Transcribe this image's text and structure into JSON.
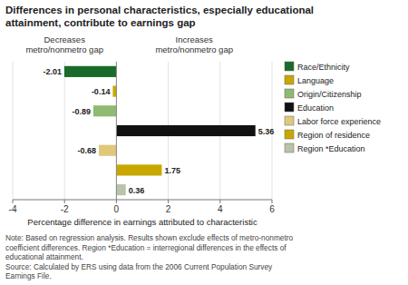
{
  "chart_data": {
    "type": "bar",
    "orientation": "horizontal",
    "title": "Differences in personal characteristics, especially educational\nattainment, contribute to earnings gap",
    "categories": [
      "Race/Ethnicity",
      "Language",
      "Origin/Citizenship",
      "Education",
      "Labor force experience",
      "Region of residence",
      "Region *Education"
    ],
    "values": [
      -2.01,
      -0.14,
      -0.89,
      5.36,
      -0.68,
      1.75,
      0.36
    ],
    "colors": [
      "#1a6b2a",
      "#c8a800",
      "#8fba70",
      "#111111",
      "#e0c87a",
      "#c8a800",
      "#b8c4a8"
    ],
    "xlim": [
      -4,
      6
    ],
    "xticks": [
      -4,
      -2,
      0,
      2,
      4,
      6
    ],
    "xlabel": "Percentage difference in earnings attributed to characteristic",
    "annotations": [
      "Decreases\nmetro/nonmetro gap",
      "Increases\nmetro/nonmetro gap"
    ],
    "note": "Note:  Based on regression analysis. Results shown exclude effects of metro-nonmetro\ncoefficient differences.  Region *Education = interregional differences in the effects of\neducational attainment.\nSource:  Calculated by ERS using data from the 2006 Current Population Survey\nEarnings File.",
    "grid": true,
    "legend": "upper right",
    "data_labels": true
  }
}
